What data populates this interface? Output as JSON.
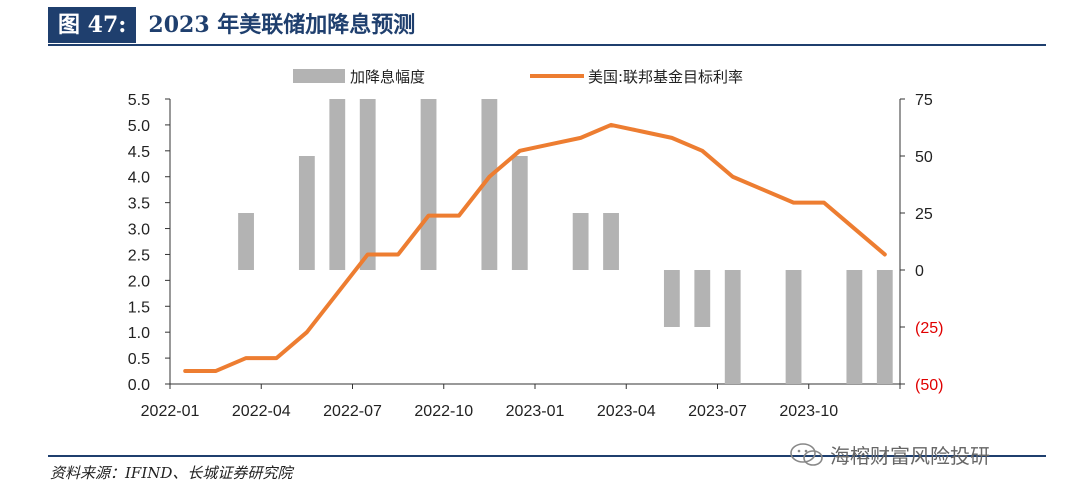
{
  "header": {
    "label": "图 47:",
    "title": "2023 年美联储加降息预测"
  },
  "source": "资料来源：IFIND、长城证券研究院",
  "watermark": "海榕财富风险投研",
  "chart_data": {
    "type": "bar+line",
    "categories": [
      "2022-01",
      "2022-02",
      "2022-03",
      "2022-04",
      "2022-05",
      "2022-06",
      "2022-07",
      "2022-08",
      "2022-09",
      "2022-10",
      "2022-11",
      "2022-12",
      "2023-01",
      "2023-02",
      "2023-03",
      "2023-04",
      "2023-05",
      "2023-06",
      "2023-07",
      "2023-08",
      "2023-09",
      "2023-10",
      "2023-11",
      "2023-12"
    ],
    "x_ticks": [
      "2022-01",
      "2022-04",
      "2022-07",
      "2022-10",
      "2023-01",
      "2023-04",
      "2023-07",
      "2023-10"
    ],
    "left_axis": {
      "ylim": [
        0,
        5.5
      ],
      "ticks": [
        "0.0",
        "0.5",
        "1.0",
        "1.5",
        "2.0",
        "2.5",
        "3.0",
        "3.5",
        "4.0",
        "4.5",
        "5.0",
        "5.5"
      ]
    },
    "right_axis": {
      "ylim": [
        -50,
        75
      ],
      "ticks": [
        "(50)",
        "(25)",
        "0",
        "25",
        "50",
        "75"
      ]
    },
    "series": [
      {
        "name": "加降息幅度",
        "type": "bar",
        "axis": "right",
        "color": "#b3b3b3",
        "values": [
          null,
          null,
          25,
          null,
          50,
          75,
          75,
          null,
          75,
          null,
          75,
          50,
          null,
          25,
          25,
          null,
          -25,
          -25,
          -50,
          null,
          -50,
          null,
          -50,
          -50
        ]
      },
      {
        "name": "美国:联邦基金目标利率",
        "type": "line",
        "axis": "left",
        "color": "#ed7d31",
        "values": [
          0.25,
          0.25,
          0.5,
          0.5,
          1.0,
          1.75,
          2.5,
          2.5,
          3.25,
          3.25,
          4.0,
          4.5,
          4.625,
          4.75,
          5.0,
          4.875,
          4.75,
          4.5,
          4.0,
          3.75,
          3.5,
          3.5,
          3.0,
          2.5
        ]
      }
    ],
    "legend_position": "top",
    "grid": false
  }
}
